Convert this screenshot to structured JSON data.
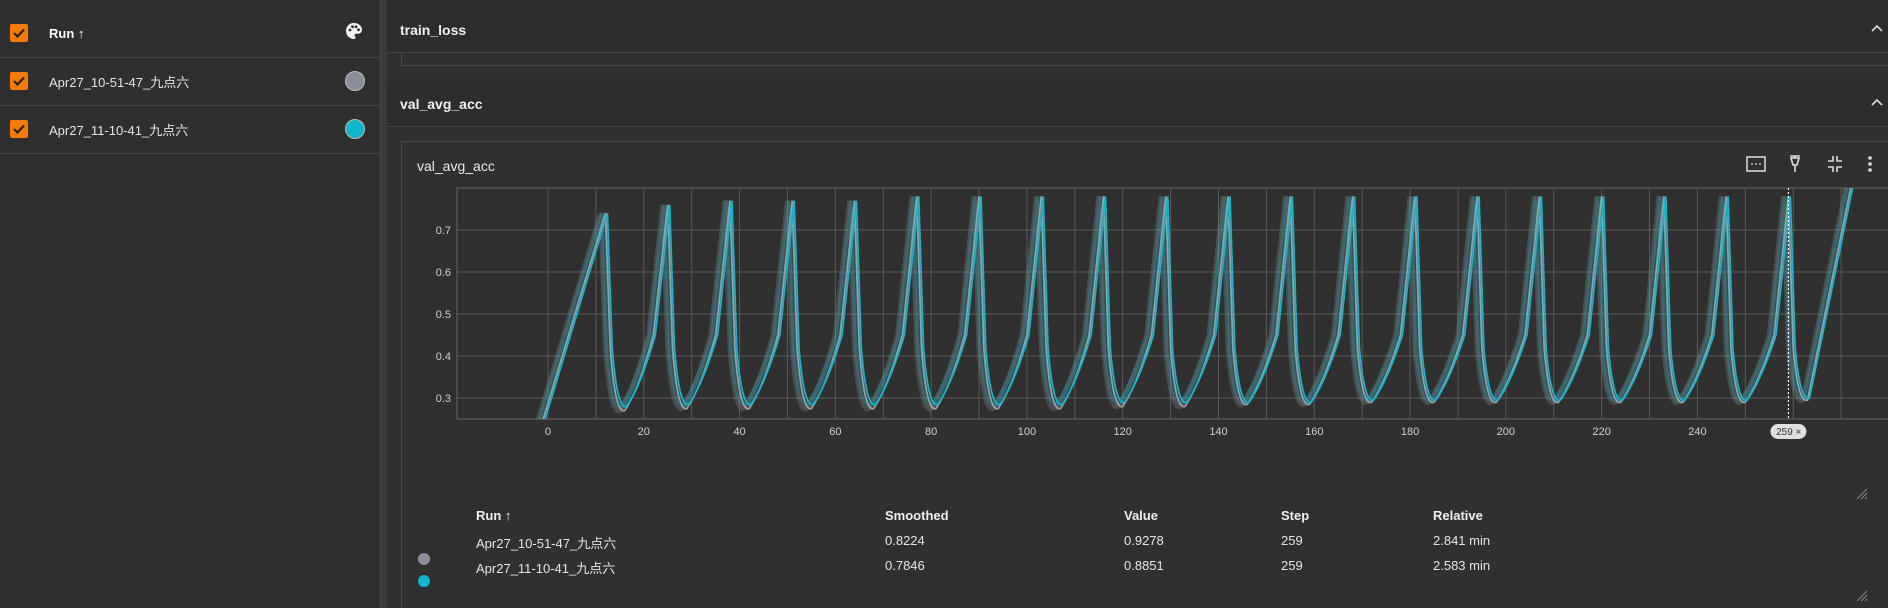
{
  "sidebar": {
    "header_label": "Run ↑",
    "runs": [
      {
        "label": "Apr27_10-51-47_九点六",
        "color": "#8a8f99"
      },
      {
        "label": "Apr27_11-10-41_九点六",
        "color": "#12b5cb"
      }
    ],
    "accent": "#f57c00"
  },
  "sections": {
    "train_loss": {
      "title": "train_loss"
    },
    "val_avg_acc": {
      "title": "val_avg_acc"
    }
  },
  "card": {
    "title": "val_avg_acc",
    "tools": [
      "fit-domain-icon",
      "pin-icon",
      "collapse-icon",
      "more-vert-icon"
    ],
    "cursor_step_label": "259"
  },
  "chart_data": {
    "type": "line",
    "xlabel": "",
    "ylabel": "",
    "x_ticks": [
      0,
      20,
      40,
      60,
      80,
      100,
      120,
      140,
      160,
      180,
      200,
      220,
      240
    ],
    "y_ticks": [
      0.3,
      0.4,
      0.5,
      0.6,
      0.7
    ],
    "xlim": [
      -19,
      280
    ],
    "ylim": [
      0.25,
      0.8
    ],
    "cursor_step": 259,
    "cycle_steps": 13,
    "series": [
      {
        "name": "Apr27_10-51-47_九点六",
        "color": "#9aa0a6",
        "minima": [
          0.27,
          0.275,
          0.275,
          0.275,
          0.275,
          0.275,
          0.275,
          0.275,
          0.28,
          0.28,
          0.285,
          0.285,
          0.29,
          0.29,
          0.29,
          0.29,
          0.29,
          0.29,
          0.29,
          0.295
        ],
        "maxima": [
          0.74,
          0.76,
          0.77,
          0.77,
          0.77,
          0.78,
          0.78,
          0.78,
          0.78,
          0.78,
          0.78,
          0.78,
          0.78,
          0.78,
          0.78,
          0.78,
          0.78,
          0.78,
          0.78,
          0.78
        ]
      },
      {
        "name": "Apr27_11-10-41_九点六",
        "color": "#12b5cb",
        "minima": [
          0.28,
          0.285,
          0.285,
          0.285,
          0.285,
          0.285,
          0.285,
          0.285,
          0.29,
          0.29,
          0.29,
          0.29,
          0.295,
          0.295,
          0.295,
          0.295,
          0.295,
          0.295,
          0.295,
          0.3
        ],
        "maxima": [
          0.74,
          0.76,
          0.77,
          0.77,
          0.77,
          0.78,
          0.78,
          0.78,
          0.78,
          0.78,
          0.78,
          0.78,
          0.78,
          0.78,
          0.78,
          0.78,
          0.78,
          0.78,
          0.78,
          0.78
        ]
      }
    ]
  },
  "table": {
    "headers": [
      "Run ↑",
      "Smoothed",
      "Value",
      "Step",
      "Relative"
    ],
    "rows": [
      {
        "color": "#8a8f99",
        "run": "Apr27_10-51-47_九点六",
        "smoothed": "0.8224",
        "value": "0.9278",
        "step": "259",
        "relative": "2.841 min"
      },
      {
        "color": "#12b5cb",
        "run": "Apr27_11-10-41_九点六",
        "smoothed": "0.7846",
        "value": "0.8851",
        "step": "259",
        "relative": "2.583 min"
      }
    ]
  }
}
